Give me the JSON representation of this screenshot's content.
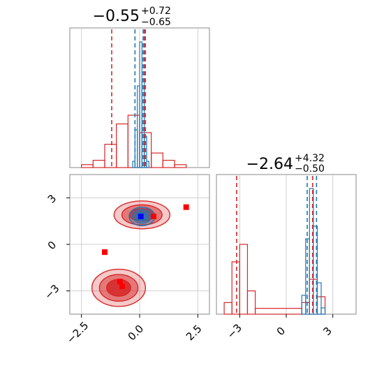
{
  "chart_data": [
    {
      "type": "histogram",
      "panel": "top-left",
      "title": {
        "main": "−0.55",
        "plus": "+0.72",
        "minus": "−0.65"
      },
      "xlim": [
        -3.0,
        3.0
      ],
      "grid": true,
      "series": [
        {
          "color": "#d62728",
          "bin_edges": [
            -2.5,
            -2.0,
            -1.5,
            -1.0,
            -0.5,
            0.0,
            0.5,
            1.0,
            1.5,
            2.0
          ],
          "counts": [
            0.02,
            0.05,
            0.16,
            0.3,
            0.36,
            0.24,
            0.1,
            0.05,
            0.02
          ],
          "quantile_lines": [
            -1.2,
            0.2
          ]
        },
        {
          "color": "#1f77b4",
          "bin_edges": [
            -0.3,
            -0.2,
            -0.1,
            0.0,
            0.1,
            0.2,
            0.3,
            0.4
          ],
          "counts": [
            0.05,
            0.3,
            0.65,
            1.0,
            0.7,
            0.25,
            0.05
          ],
          "quantile_lines": [
            -0.2,
            0.15,
            0.25
          ]
        }
      ]
    },
    {
      "type": "histogram",
      "panel": "bottom-right",
      "title": {
        "main": "−2.64",
        "plus": "+4.32",
        "minus": "−0.50"
      },
      "xlim": [
        -4.5,
        4.5
      ],
      "xticks": [
        "−3",
        "0",
        "3"
      ],
      "grid": true,
      "series": [
        {
          "color": "#d62728",
          "bin_edges": [
            -4.0,
            -3.5,
            -3.0,
            -2.5,
            -2.0,
            1.0,
            1.5,
            2.0,
            2.5
          ],
          "counts": [
            0.1,
            0.45,
            0.6,
            0.2,
            0.05,
            0.1,
            0.3,
            0.15
          ],
          "quantile_lines": [
            -3.2,
            1.7
          ]
        },
        {
          "color": "#1f77b4",
          "bin_edges": [
            1.0,
            1.25,
            1.5,
            1.75,
            2.0,
            2.25,
            2.5
          ],
          "counts": [
            0.15,
            0.6,
            1.0,
            0.7,
            0.25,
            0.05
          ],
          "quantile_lines": [
            1.35,
            1.95
          ]
        }
      ]
    },
    {
      "type": "contour",
      "panel": "bottom-left",
      "xlim": [
        -3.0,
        3.0
      ],
      "ylim": [
        -4.5,
        4.5
      ],
      "xticks": [
        "−2.5",
        "0.0",
        "2.5"
      ],
      "yticks": [
        "−3",
        "0",
        "3"
      ],
      "grid": true,
      "series": [
        {
          "color": "#d62728",
          "center": [
            -0.9,
            -2.8
          ],
          "rx": 1.15,
          "ry": 1.2
        },
        {
          "color": "#d62728",
          "center": [
            0.1,
            1.9
          ],
          "rx": 1.2,
          "ry": 0.9
        },
        {
          "color": "#1f77b4",
          "center": [
            0.1,
            1.8
          ],
          "rx": 0.55,
          "ry": 0.6
        }
      ],
      "markers": [
        {
          "color": "#ff0000",
          "x": 2.0,
          "y": 2.4
        },
        {
          "color": "#ff0000",
          "x": -1.5,
          "y": -0.5
        },
        {
          "color": "#ff0000",
          "x": 0.6,
          "y": 1.8
        },
        {
          "color": "#ff0000",
          "x": -0.85,
          "y": -2.4
        },
        {
          "color": "#ff0000",
          "x": -0.75,
          "y": -2.7
        },
        {
          "color": "#0000ff",
          "x": 0.05,
          "y": 1.8
        }
      ]
    }
  ]
}
